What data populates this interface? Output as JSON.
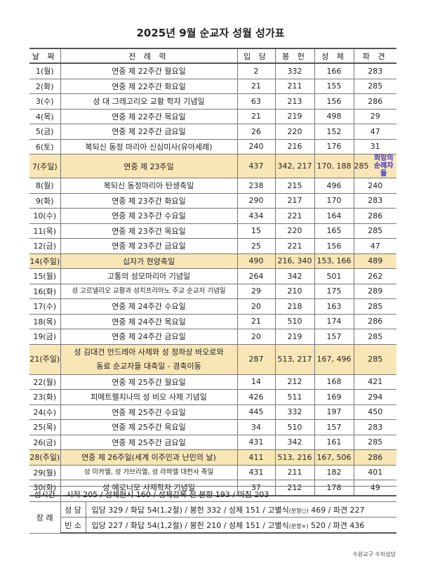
{
  "title": "2025년 9월 순교자 성월 성가표",
  "headers": [
    "날 짜",
    "전 례 력",
    "입 당",
    "봉 헌",
    "성 체",
    "파 견"
  ],
  "rows": [
    {
      "date": "1(월)",
      "liturgy": "연중 제 22주간 월요일",
      "entrance": "2",
      "offertory": "332",
      "communion": "166",
      "dismissal": "283"
    },
    {
      "date": "2(화)",
      "liturgy": "연중 제 22주간 화요일",
      "entrance": "21",
      "offertory": "211",
      "communion": "155",
      "dismissal": "285"
    },
    {
      "date": "3(수)",
      "liturgy": "성 대 그레고리오 교황 학자 기념일",
      "entrance": "63",
      "offertory": "213",
      "communion": "156",
      "dismissal": "286"
    },
    {
      "date": "4(목)",
      "liturgy": "연중 제 22주간 목요일",
      "entrance": "21",
      "offertory": "219",
      "communion": "498",
      "dismissal": "29"
    },
    {
      "date": "5(금)",
      "liturgy": "연중 제 22주간 금요일",
      "entrance": "26",
      "offertory": "220",
      "communion": "152",
      "dismissal": "47"
    },
    {
      "date": "6(토)",
      "liturgy": "복되신 동정 마리아 신심미사(유아세례)",
      "entrance": "240",
      "offertory": "216",
      "communion": "176",
      "dismissal": "31"
    },
    {
      "date": "7(주일)",
      "liturgy": "연중 제 23주일",
      "entrance": "437",
      "offertory": "342, 217",
      "communion": "170, 188",
      "dismissal": "285",
      "overlay": "희망의 순례자들"
    },
    {
      "date": "8(월)",
      "liturgy": "복되신 동정마리아 탄생축일",
      "entrance": "238",
      "offertory": "215",
      "communion": "496",
      "dismissal": "240"
    },
    {
      "date": "9(화)",
      "liturgy": "연중 제 23주간 화요일",
      "entrance": "290",
      "offertory": "217",
      "communion": "170",
      "dismissal": "283"
    },
    {
      "date": "10(수)",
      "liturgy": "연중 제 23주간 수요일",
      "entrance": "434",
      "offertory": "221",
      "communion": "164",
      "dismissal": "286"
    },
    {
      "date": "11(목)",
      "liturgy": "연중 제 23주간 목요일",
      "entrance": "15",
      "offertory": "220",
      "communion": "165",
      "dismissal": "285"
    },
    {
      "date": "12(금)",
      "liturgy": "연중 제 23주간 금요일",
      "entrance": "25",
      "offertory": "221",
      "communion": "156",
      "dismissal": "47"
    },
    {
      "date": "14(주일)",
      "liturgy": "십자가 현양축일",
      "entrance": "490",
      "offertory": "216, 340",
      "communion": "153, 166",
      "dismissal": "489"
    },
    {
      "date": "15(월)",
      "liturgy": "고통의 성모마리아 기념일",
      "entrance": "264",
      "offertory": "342",
      "communion": "501",
      "dismissal": "262"
    },
    {
      "date": "16(화)",
      "liturgy": "성 고르넬리오 교황과 성치프리아노 주교 순교자 기념일",
      "entrance": "29",
      "offertory": "210",
      "communion": "175",
      "dismissal": "289"
    },
    {
      "date": "17(수)",
      "liturgy": "연중 제 24주간 수요일",
      "entrance": "20",
      "offertory": "218",
      "communion": "163",
      "dismissal": "285"
    },
    {
      "date": "18(목)",
      "liturgy": "연중 제 24주간 목요일",
      "entrance": "21",
      "offertory": "510",
      "communion": "174",
      "dismissal": "286"
    },
    {
      "date": "19(금)",
      "liturgy": "연중 제 24주간 금요일",
      "entrance": "20",
      "offertory": "219",
      "communion": "157",
      "dismissal": "285"
    },
    {
      "date": "21(주일)",
      "liturgy": "성 김대건 안드레아 사제와 성 정하상 바오로와",
      "liturgy2": "동료 순교자들 대축일 - 경축이동",
      "entrance": "287",
      "offertory": "513, 217",
      "communion": "167, 496",
      "dismissal": "285"
    },
    {
      "date": "22(월)",
      "liturgy": "연중 제 25주간 월요일",
      "entrance": "14",
      "offertory": "212",
      "communion": "168",
      "dismissal": "421"
    },
    {
      "date": "23(화)",
      "liturgy": "피에트렐치나의 성 비오 사제 기념일",
      "entrance": "426",
      "offertory": "511",
      "communion": "169",
      "dismissal": "294"
    },
    {
      "date": "24(수)",
      "liturgy": "연중 제 25주간 수요일",
      "entrance": "445",
      "offertory": "332",
      "communion": "197",
      "dismissal": "450"
    },
    {
      "date": "25(목)",
      "liturgy": "연중 제 25주간 목요일",
      "entrance": "34",
      "offertory": "510",
      "communion": "157",
      "dismissal": "283"
    },
    {
      "date": "26(금)",
      "liturgy": "연중 제 25주간 금요일",
      "entrance": "431",
      "offertory": "342",
      "communion": "161",
      "dismissal": "285"
    },
    {
      "date": "28(주일)",
      "liturgy": "연중 제 26주일(세계 이주민과 난민의 날)",
      "entrance": "411",
      "offertory": "513, 216",
      "communion": "167, 506",
      "dismissal": "286"
    },
    {
      "date": "29(월)",
      "liturgy": "성 미카엘, 성 가브리엘, 성 라파엘 대천사 축일",
      "entrance": "431",
      "offertory": "211",
      "communion": "182",
      "dismissal": "401"
    },
    {
      "date": "30(화)",
      "liturgy": "성 예로니모 사제학자 기념일",
      "entrance": "37",
      "offertory": "212",
      "communion": "178",
      "dismissal": "49"
    }
  ],
  "holy_hour": {
    "label": "성시간",
    "text": "시작 205 / 성체현시 160 / 성체강복 전 분향 193 / 마침 203"
  },
  "funeral": {
    "label": "장 례",
    "church": {
      "label": "성 당",
      "pre": "입당 329 / 화답 54(1,2절) / 봉헌 332 / 성체 151 / 고별식",
      "note": "(분향○)",
      "post": " 469 / 파견 227"
    },
    "chapel": {
      "label": "빈 소",
      "pre": "입당 227 / 화답 54(1,2절) / 봉헌 210 / 성체 151 / 고별식",
      "note": "(분향×)",
      "post": " 520 / 파견 436"
    }
  },
  "footer": "수원교구 수지성당",
  "colors": {
    "sunday_highlight": "#f8e6b6",
    "overlay_text": "#3a2fd0"
  }
}
